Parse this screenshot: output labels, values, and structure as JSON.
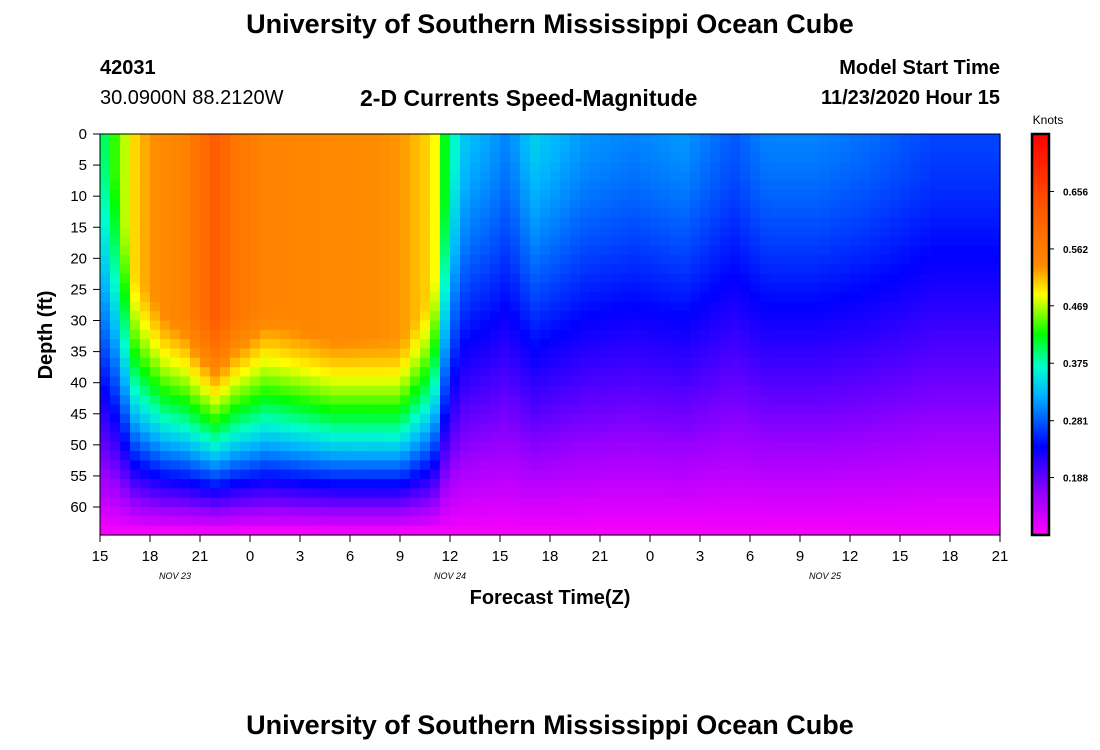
{
  "header": {
    "title": "University of Southern Mississippi Ocean Cube",
    "station_id": "42031",
    "station_coords": "30.0900N 88.2120W",
    "plot_title": "2-D Currents Speed-Magnitude",
    "model_start_label": "Model Start Time",
    "model_start_value": "11/23/2020 Hour 15"
  },
  "footer": {
    "title": "University of Southern Mississippi Ocean Cube"
  },
  "chart_data": {
    "type": "heatmap",
    "title": "2-D Currents Speed-Magnitude",
    "xlabel": "Forecast Time(Z)",
    "ylabel": "Depth (ft)",
    "x_ticks": [
      "15",
      "18",
      "21",
      "0",
      "3",
      "6",
      "9",
      "12",
      "15",
      "18",
      "21",
      "0",
      "3",
      "6",
      "9",
      "12",
      "15",
      "18",
      "21"
    ],
    "x_range_hours": [
      0,
      54
    ],
    "x_tick_step_hours": 3,
    "date_labels": [
      {
        "label": "NOV  23",
        "hour": 4.5
      },
      {
        "label": "NOV  24",
        "hour": 21
      },
      {
        "label": "NOV  25",
        "hour": 43.5
      }
    ],
    "y_ticks": [
      0,
      5,
      10,
      15,
      20,
      25,
      30,
      35,
      40,
      45,
      50,
      55,
      60
    ],
    "y_range_ft": [
      0,
      64.5
    ],
    "colorbar": {
      "units": "Knots",
      "ticks": [
        "0.656",
        "0.562",
        "0.469",
        "0.375",
        "0.281",
        "0.188"
      ],
      "tick_values": [
        0.656,
        0.562,
        0.469,
        0.375,
        0.281,
        0.188
      ],
      "range": [
        0.094,
        0.75
      ]
    },
    "surface_speed_by_hour": [
      {
        "hour": 0,
        "speed": 0.38
      },
      {
        "hour": 1,
        "speed": 0.44
      },
      {
        "hour": 2,
        "speed": 0.5
      },
      {
        "hour": 3,
        "speed": 0.53
      },
      {
        "hour": 5,
        "speed": 0.55
      },
      {
        "hour": 7,
        "speed": 0.62
      },
      {
        "hour": 8,
        "speed": 0.58
      },
      {
        "hour": 10,
        "speed": 0.55
      },
      {
        "hour": 14,
        "speed": 0.54
      },
      {
        "hour": 18,
        "speed": 0.53
      },
      {
        "hour": 20,
        "speed": 0.5
      },
      {
        "hour": 21,
        "speed": 0.38
      },
      {
        "hour": 22,
        "speed": 0.33
      },
      {
        "hour": 23,
        "speed": 0.32
      },
      {
        "hour": 24.5,
        "speed": 0.3
      },
      {
        "hour": 26,
        "speed": 0.34
      },
      {
        "hour": 27,
        "speed": 0.33
      },
      {
        "hour": 29,
        "speed": 0.31
      },
      {
        "hour": 32,
        "speed": 0.3
      },
      {
        "hour": 35,
        "speed": 0.31
      },
      {
        "hour": 38,
        "speed": 0.28
      },
      {
        "hour": 40,
        "speed": 0.3
      },
      {
        "hour": 43,
        "speed": 0.3
      },
      {
        "hour": 46,
        "speed": 0.29
      },
      {
        "hour": 50,
        "speed": 0.27
      },
      {
        "hour": 54,
        "speed": 0.27
      }
    ],
    "high_speed_layer_bottom_ft_by_hour": [
      {
        "hour": 0,
        "depth": 0
      },
      {
        "hour": 1,
        "depth": 6
      },
      {
        "hour": 2,
        "depth": 22
      },
      {
        "hour": 4,
        "depth": 28
      },
      {
        "hour": 7,
        "depth": 29
      },
      {
        "hour": 10,
        "depth": 27
      },
      {
        "hour": 14,
        "depth": 32
      },
      {
        "hour": 18,
        "depth": 33
      },
      {
        "hour": 20,
        "depth": 25
      },
      {
        "hour": 21,
        "depth": 4
      },
      {
        "hour": 22,
        "depth": 0
      }
    ]
  }
}
